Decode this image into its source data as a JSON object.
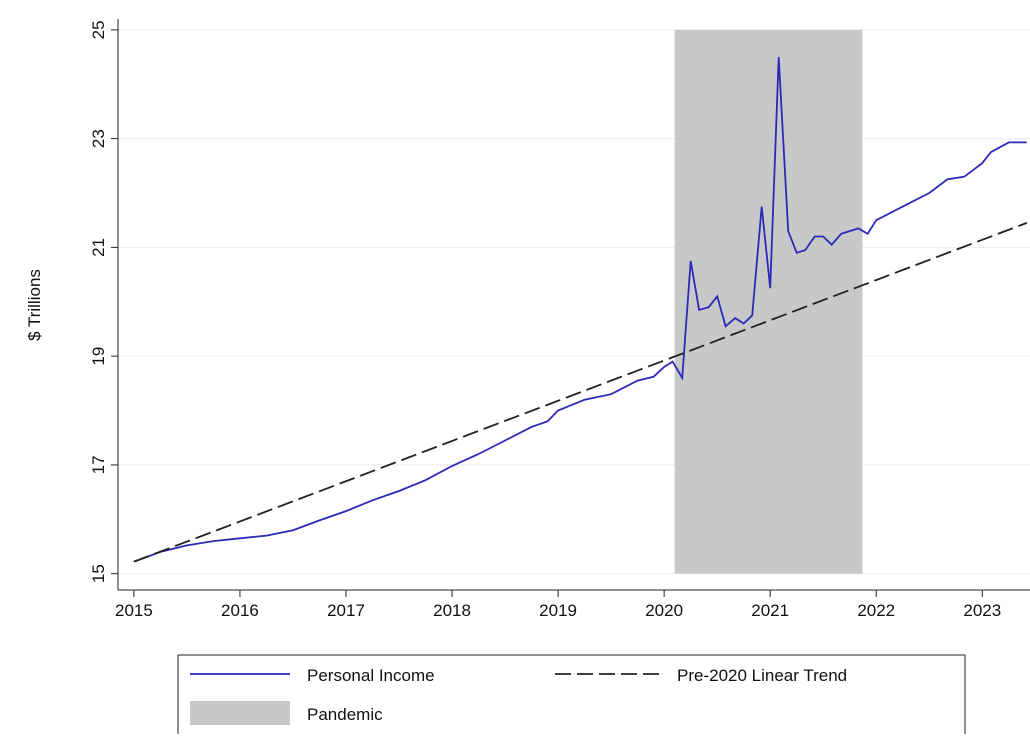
{
  "chart_data": {
    "type": "line",
    "y_label": "$ Trillions",
    "xlim": [
      2014.85,
      2023.45
    ],
    "xticks": [
      2015,
      2016,
      2017,
      2018,
      2019,
      2020,
      2021,
      2022,
      2023
    ],
    "ylim": [
      14.7,
      25.2
    ],
    "yticks": [
      15,
      17,
      19,
      21,
      23,
      25
    ],
    "grid": true,
    "shade": {
      "name": "Pandemic",
      "color": "#c8c8c8",
      "x": [
        2020.1,
        2021.87
      ],
      "y": [
        15,
        25
      ]
    },
    "series": [
      {
        "name": "Personal Income",
        "color": "#2a2ab8",
        "dash": false,
        "x": [
          2015.0,
          2015.25,
          2015.5,
          2015.75,
          2016.0,
          2016.25,
          2016.5,
          2016.75,
          2017.0,
          2017.25,
          2017.5,
          2017.75,
          2018.0,
          2018.25,
          2018.5,
          2018.75,
          2018.9,
          2019.0,
          2019.25,
          2019.5,
          2019.75,
          2019.9,
          2020.0,
          2020.08,
          2020.17,
          2020.25,
          2020.33,
          2020.42,
          2020.5,
          2020.58,
          2020.67,
          2020.75,
          2020.83,
          2020.92,
          2021.0,
          2021.08,
          2021.17,
          2021.25,
          2021.33,
          2021.42,
          2021.5,
          2021.58,
          2021.67,
          2021.75,
          2021.83,
          2021.92,
          2022.0,
          2022.25,
          2022.5,
          2022.67,
          2022.83,
          2023.0,
          2023.08,
          2023.25,
          2023.42
        ],
        "values": [
          15.22,
          15.4,
          15.52,
          15.6,
          15.65,
          15.7,
          15.8,
          15.98,
          16.15,
          16.35,
          16.52,
          16.72,
          16.98,
          17.2,
          17.45,
          17.7,
          17.8,
          18.0,
          18.2,
          18.3,
          18.55,
          18.62,
          18.8,
          18.9,
          18.6,
          20.75,
          19.85,
          19.9,
          20.1,
          19.55,
          19.7,
          19.6,
          19.75,
          21.75,
          20.25,
          24.5,
          21.3,
          20.9,
          20.95,
          21.2,
          21.2,
          21.05,
          21.25,
          21.3,
          21.35,
          21.25,
          21.5,
          21.75,
          22.0,
          22.25,
          22.3,
          22.55,
          22.75,
          22.93,
          22.93
        ]
      },
      {
        "name": "Pre-2020 Linear Trend",
        "color": "#222222",
        "dash": true,
        "x": [
          2015.0,
          2023.42
        ],
        "values": [
          15.22,
          21.45
        ]
      }
    ]
  }
}
